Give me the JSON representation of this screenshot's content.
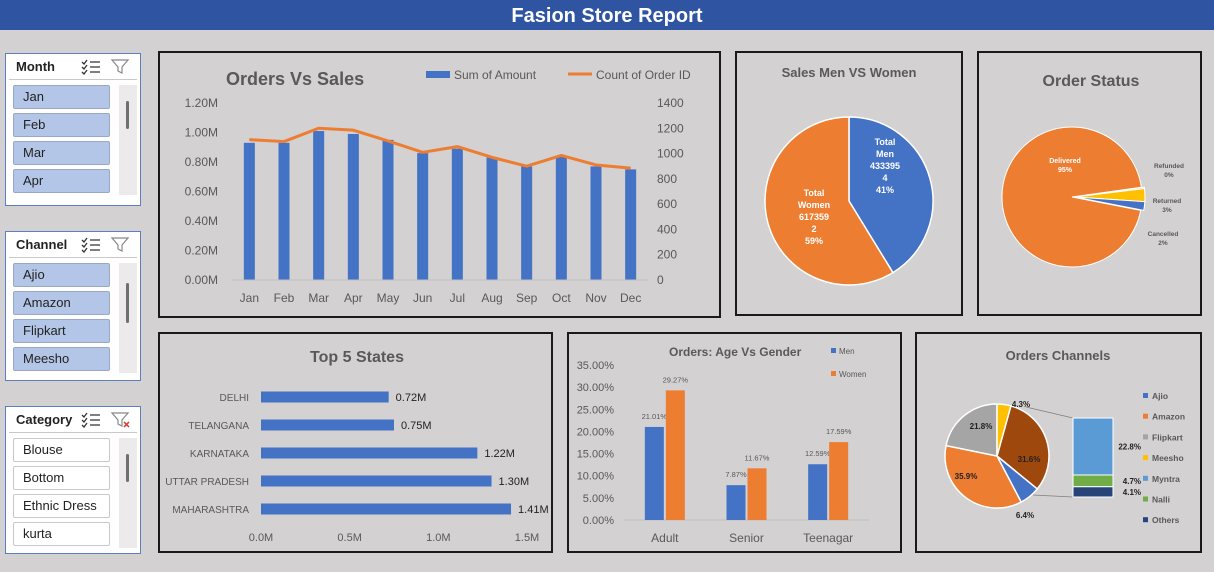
{
  "header": {
    "title": "Fasion Store Report"
  },
  "slicers": {
    "month": {
      "title": "Month",
      "items": [
        "Jan",
        "Feb",
        "Mar",
        "Apr"
      ]
    },
    "channel": {
      "title": "Channel",
      "items": [
        "Ajio",
        "Amazon",
        "Flipkart",
        "Meesho"
      ]
    },
    "category": {
      "title": "Category",
      "items": [
        "Blouse",
        "Bottom",
        "Ethnic Dress",
        "kurta"
      ]
    }
  },
  "colors": {
    "blue": "#4472c4",
    "orange": "#ed7d31",
    "gray": "#a5a5a5",
    "gold": "#ffc000",
    "lightblue": "#5b9bd5",
    "green": "#70ad47",
    "navy": "#264478",
    "brown": "#9e480e",
    "header": "#2e54a2"
  },
  "chart_data": [
    {
      "type": "bar",
      "title": "Orders Vs Sales",
      "categories": [
        "Jan",
        "Feb",
        "Mar",
        "Apr",
        "May",
        "Jun",
        "Jul",
        "Aug",
        "Sep",
        "Oct",
        "Nov",
        "Dec"
      ],
      "series": [
        {
          "name": "Sum of Amount",
          "type": "bar",
          "axis": "left",
          "values": [
            0.93,
            0.93,
            1.01,
            0.99,
            0.95,
            0.86,
            0.89,
            0.83,
            0.77,
            0.84,
            0.77,
            0.75
          ]
        },
        {
          "name": "Count of Order ID",
          "type": "line",
          "axis": "right",
          "values": [
            1110,
            1095,
            1200,
            1185,
            1100,
            1010,
            1055,
            970,
            900,
            985,
            910,
            885
          ]
        }
      ],
      "ylim": [
        0,
        1.2
      ],
      "y2lim": [
        0,
        1400
      ],
      "yticks": [
        "0.00M",
        "0.20M",
        "0.40M",
        "0.60M",
        "0.80M",
        "1.00M",
        "1.20M"
      ],
      "y2ticks": [
        "0",
        "200",
        "400",
        "600",
        "800",
        "1000",
        "1200",
        "1400"
      ],
      "legend": "top"
    },
    {
      "type": "pie",
      "title": "Sales Men VS Women",
      "slices": [
        {
          "label": "Total Men",
          "value": 4333954,
          "percent": 41,
          "lines": [
            "Total",
            "Men",
            "433395",
            "4",
            "41%"
          ]
        },
        {
          "label": "Total Women",
          "value": 6173592,
          "percent": 59,
          "lines": [
            "Total",
            "Women",
            "617359",
            "2",
            "59%"
          ]
        }
      ]
    },
    {
      "type": "pie",
      "title": "Order Status",
      "slices": [
        {
          "label": "Delivered",
          "percent": 95,
          "text": "95%"
        },
        {
          "label": "Refunded",
          "percent": 0.3,
          "text": "0%"
        },
        {
          "label": "Returned",
          "percent": 3,
          "text": "3%"
        },
        {
          "label": "Cancelled",
          "percent": 2,
          "text": "2%"
        }
      ]
    },
    {
      "type": "bar",
      "orientation": "horizontal",
      "title": "Top 5 States",
      "categories": [
        "DELHI",
        "TELANGANA",
        "KARNATAKA",
        "UTTAR PRADESH",
        "MAHARASHTRA"
      ],
      "values": [
        0.72,
        0.75,
        1.22,
        1.3,
        1.41
      ],
      "labels": [
        "0.72M",
        "0.75M",
        "1.22M",
        "1.30M",
        "1.41M"
      ],
      "xlim": [
        0,
        1.5
      ],
      "xticks": [
        "0.0M",
        "0.5M",
        "1.0M",
        "1.5M"
      ]
    },
    {
      "type": "bar",
      "title": "Orders: Age Vs Gender",
      "categories": [
        "Adult",
        "Senior",
        "Teenagar"
      ],
      "series": [
        {
          "name": "Men",
          "values": [
            21.01,
            7.87,
            12.59
          ],
          "labels": [
            "21.01%",
            "7.87%",
            "12.59%"
          ]
        },
        {
          "name": "Women",
          "values": [
            29.27,
            11.67,
            17.59
          ],
          "labels": [
            "29.27%",
            "11.67%",
            "17.59%"
          ]
        }
      ],
      "ylim": [
        0,
        35
      ],
      "yticks": [
        "0.00%",
        "5.00%",
        "10.00%",
        "15.00%",
        "20.00%",
        "25.00%",
        "30.00%",
        "35.00%"
      ],
      "legend": "top-right"
    },
    {
      "type": "pie",
      "subtype": "pie-of-pie",
      "title": "Orders Channels",
      "slices": [
        {
          "label": "Ajio",
          "percent": 6.4,
          "text": "6.4%"
        },
        {
          "label": "Amazon",
          "percent": 35.9,
          "text": "35.9%"
        },
        {
          "label": "Flipkart",
          "percent": 21.8,
          "text": "21.8%"
        },
        {
          "label": "Meesho",
          "percent": 4.3,
          "text": "4.3%"
        },
        {
          "label": "Others",
          "percent": 31.6,
          "text": "31.6%"
        }
      ],
      "others_breakdown": [
        {
          "label": "Myntra",
          "percent": 22.8,
          "text": "22.8%"
        },
        {
          "label": "Nalli",
          "percent": 4.7,
          "text": "4.7%"
        },
        {
          "label": "Others",
          "percent": 4.1,
          "text": "4.1%"
        }
      ],
      "legend_entries": [
        "Ajio",
        "Amazon",
        "Flipkart",
        "Meesho",
        "Myntra",
        "Nalli",
        "Others"
      ],
      "legend": "right"
    }
  ]
}
